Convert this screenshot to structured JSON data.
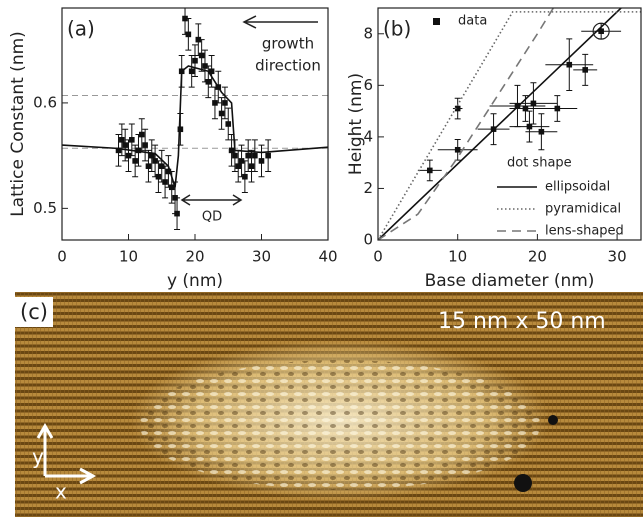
{
  "chart_data": [
    {
      "type": "scatter",
      "panel_label": "(a)",
      "xlabel": "y (nm)",
      "ylabel": "Lattice Constant (nm)",
      "xlim": [
        0,
        40
      ],
      "ylim": [
        0.47,
        0.69
      ],
      "xticks": [
        0,
        10,
        20,
        30,
        40
      ],
      "yticks": [
        0.5,
        0.6
      ],
      "reference_lines": [
        0.607,
        0.557
      ],
      "arrow_label": [
        "growth",
        "direction"
      ],
      "region_label": "QD",
      "series": [
        {
          "style": "points",
          "color": "#111111",
          "x": [
            8.5,
            9,
            9.5,
            10,
            10.5,
            11,
            11.5,
            12,
            12.5,
            13,
            13.5,
            14,
            14.5,
            15,
            15.5,
            16,
            16.5,
            17,
            17.3,
            17.8,
            18,
            18.5,
            19,
            19.5,
            20,
            20.5,
            21,
            21.5,
            22,
            22.5,
            23,
            23.5,
            24,
            24.5,
            25,
            25.5,
            26,
            26.5,
            27,
            27.5,
            28,
            28.5,
            29,
            30,
            31
          ],
          "values": [
            0.555,
            0.565,
            0.56,
            0.55,
            0.565,
            0.545,
            0.555,
            0.57,
            0.56,
            0.54,
            0.55,
            0.545,
            0.53,
            0.54,
            0.525,
            0.535,
            0.52,
            0.51,
            0.495,
            0.575,
            0.63,
            0.68,
            0.665,
            0.63,
            0.64,
            0.66,
            0.645,
            0.635,
            0.62,
            0.63,
            0.6,
            0.615,
            0.59,
            0.6,
            0.58,
            0.555,
            0.55,
            0.54,
            0.545,
            0.53,
            0.55,
            0.54,
            0.55,
            0.545,
            0.55
          ],
          "errors": [
            0.015,
            0.015,
            0.015,
            0.015,
            0.015,
            0.015,
            0.015,
            0.015,
            0.015,
            0.015,
            0.015,
            0.015,
            0.015,
            0.015,
            0.015,
            0.015,
            0.015,
            0.015,
            0.015,
            0.015,
            0.015,
            0.015,
            0.015,
            0.015,
            0.015,
            0.015,
            0.015,
            0.015,
            0.015,
            0.015,
            0.015,
            0.015,
            0.015,
            0.015,
            0.015,
            0.015,
            0.015,
            0.015,
            0.015,
            0.015,
            0.015,
            0.015,
            0.015,
            0.015,
            0.015
          ]
        },
        {
          "style": "solid",
          "color": "#111111",
          "x": [
            0,
            8,
            14,
            16,
            17,
            17.5,
            18,
            19,
            22,
            24,
            25.5,
            26,
            30,
            40
          ],
          "values": [
            0.56,
            0.557,
            0.552,
            0.54,
            0.52,
            0.55,
            0.63,
            0.635,
            0.63,
            0.61,
            0.6,
            0.555,
            0.553,
            0.558
          ]
        }
      ]
    },
    {
      "type": "scatter",
      "panel_label": "(b)",
      "xlabel": "Base diameter (nm)",
      "ylabel": "Height (nm)",
      "xlim": [
        0,
        33
      ],
      "ylim": [
        0,
        9
      ],
      "xticks": [
        0,
        10,
        20,
        30
      ],
      "yticks": [
        0,
        2,
        4,
        6,
        8
      ],
      "legend_title": "dot shape",
      "series": [
        {
          "name": "data",
          "style": "points",
          "color": "#111111",
          "x": [
            6.5,
            10,
            10,
            14.5,
            17.5,
            18.5,
            19,
            19.5,
            20.5,
            22.5,
            24,
            26,
            28
          ],
          "values": [
            2.7,
            3.5,
            5.1,
            4.3,
            5.2,
            5.1,
            4.4,
            5.3,
            4.2,
            5.1,
            6.8,
            6.6,
            8.1
          ],
          "x_errors": [
            1.5,
            2.5,
            0.6,
            2,
            3.5,
            2,
            2.5,
            3,
            2,
            2.5,
            3,
            1.5,
            2.5
          ],
          "errors": [
            0.4,
            0.4,
            0.4,
            0.6,
            0.8,
            0.5,
            0.6,
            0.8,
            0.7,
            0.5,
            1,
            0.6,
            0.3
          ]
        },
        {
          "name": "ellipsoidal",
          "style": "solid",
          "color": "#111111",
          "x": [
            0,
            30.5
          ],
          "values": [
            0,
            9
          ]
        },
        {
          "name": "pyramidical",
          "style": "dotted",
          "color": "#666666",
          "x": [
            0,
            16.9,
            33
          ],
          "values": [
            0,
            8.85,
            8.85
          ]
        },
        {
          "name": "lens-shaped",
          "style": "dashed",
          "color": "#777777",
          "x": [
            0,
            5,
            10,
            15,
            20,
            22
          ],
          "values": [
            0,
            1.0,
            3.2,
            5.6,
            8,
            9
          ]
        }
      ]
    }
  ],
  "image": {
    "panel_label": "(c)",
    "scale_label": "15 nm x 50 nm",
    "axis_labels": [
      "y",
      "x"
    ]
  }
}
